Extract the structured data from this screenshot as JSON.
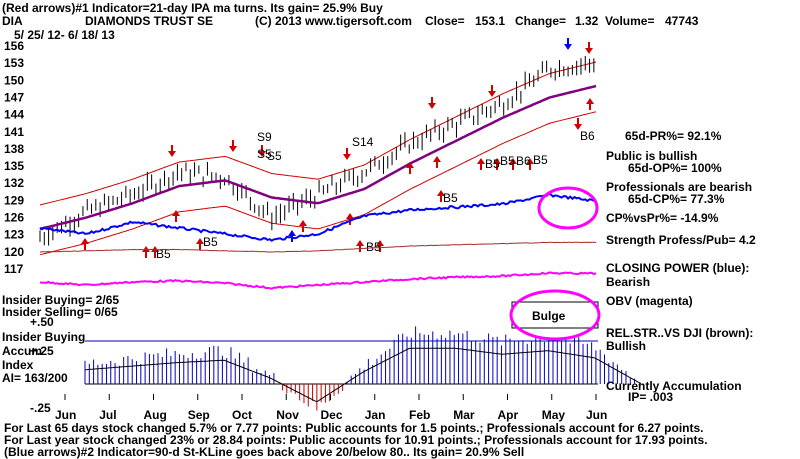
{
  "header": {
    "line1": "(Red arrows)#1 Indicator=21-day IPA ma turns. Its gain= 25.9% Buy",
    "symbol": "DIA",
    "name": "DIAMONDS TRUST SE",
    "copyright": "(C) 2013 www.tigersoft.com",
    "close_label": "Close=",
    "close": "153.1",
    "change_label": "Change=",
    "change": "1.32",
    "volume_label": "Volume=",
    "volume": "47743",
    "daterange": "5/ 25/ 12- 6/ 18/ 13"
  },
  "right_panel": {
    "pr": "65d-PR%= 92.1%",
    "public": "Public is bullish",
    "op": "65d-OP%= 100%",
    "prof": "Professionals are bearish",
    "cp": "65d-CP%= 77.3%",
    "cpvspr": "CP%vsPr%= -14.9%",
    "strength": "Strength Profess/Pub= 4.2",
    "closing_power": "CLOSING POWER (blue):",
    "closing_power_state": "Bearish",
    "obv": "OBV (magenta)",
    "relstr": "REL.STR..VS DJI (brown):",
    "relstr_state": "Bullish",
    "current_accum": "Currently Accumulation",
    "ip": "IP= .003"
  },
  "left_labels": {
    "insider_buying": "Insider Buying= 2/65",
    "insider_selling": "Insider Selling= 0/65",
    "insider_buying2": "Insider Buying",
    "accum": "Accum",
    "index": "Index",
    "ai": "AI= 163/200",
    "plus50": "+.50",
    "plus25": "+.25",
    "minus25": "-.25"
  },
  "bulge_label": "Bulge",
  "footer": {
    "line1": "For Last 65 days stock changed  5.7% or  7.77 points:  Public accounts for  1.5 points.;  Professionals account for  6.27 points.",
    "line2": "For Last year stock changed  23% or  28.84 points:  Public accounts for  10.91 points.;  Professionals account for  17.93 points.",
    "line3": "(Blue arrows)#2 Indicator=90-d St-KLine goes back above 20/below 80.. Its gain= 20.9% Sell"
  },
  "signals": {
    "s9": "S9",
    "s5": "S5",
    "s5b": "S5",
    "s14": "S14",
    "b5a": "B5",
    "b5b": "B5",
    "b5c": "B5",
    "b5d": "B5",
    "b5e": "B5",
    "b5f": "B5",
    "b5g": "B5",
    "b6a": "B6",
    "b6b": "B6"
  },
  "colors": {
    "price_bar": "#000000",
    "band": "#d00000",
    "ma": "#800080",
    "closing_power": "#0000ff",
    "obv": "#ff00ff",
    "relstr": "#a52a2a",
    "accum_pos": "#0000c0",
    "accum_neg": "#cc0000",
    "highlight": "#ff00ff"
  },
  "chart_data": {
    "type": "line",
    "title": "DIAMONDS TRUST SE",
    "xlabel": "",
    "ylabel": "",
    "x_ticks": [
      "Jun",
      "Jul",
      "Aug",
      "Sep",
      "Oct",
      "Nov",
      "Dec",
      "Jan",
      "Feb",
      "Mar",
      "Apr",
      "May",
      "Jun"
    ],
    "y_ticks": [
      156,
      153,
      150,
      147,
      144,
      141,
      138,
      135,
      132,
      129,
      126,
      123,
      120,
      117
    ],
    "ylim": [
      115,
      157
    ],
    "price_series": {
      "name": "DIA close",
      "months": [
        "Jun",
        "Jul",
        "Aug",
        "Sep",
        "Oct",
        "Nov",
        "Dec",
        "Jan",
        "Feb",
        "Mar",
        "Apr",
        "May",
        "Jun"
      ],
      "values": [
        122.5,
        127,
        130,
        134,
        133,
        126,
        130,
        134,
        139,
        142.5,
        146,
        152,
        153.1
      ]
    },
    "moving_average": {
      "name": "21-day MA",
      "values": [
        124,
        126,
        128.5,
        131.5,
        132.5,
        129.5,
        128.5,
        131,
        135.5,
        139.5,
        143.5,
        147,
        149
      ]
    },
    "accum_index": {
      "name": "Accumulation Index",
      "ylim": [
        -0.25,
        0.5
      ],
      "values": [
        0.12,
        0.15,
        0.18,
        0.2,
        0.05,
        -0.15,
        0.1,
        0.3,
        0.3,
        0.25,
        0.28,
        0.22,
        0.003
      ]
    },
    "series": [
      {
        "name": "Closing Power (blue)",
        "values": [
          5,
          4,
          6,
          5,
          4,
          3,
          4,
          7,
          8,
          8.5,
          9,
          10.5,
          9.5
        ]
      },
      {
        "name": "OBV (magenta)",
        "values": [
          3,
          2.5,
          3,
          3.2,
          2.8,
          2,
          2.5,
          3,
          3.5,
          3.8,
          4,
          4.5,
          4.4
        ]
      },
      {
        "name": "Rel.Str vs DJI (brown)",
        "values": [
          4,
          4.1,
          4.2,
          4.2,
          4.1,
          4,
          4.1,
          4.3,
          4.5,
          4.6,
          4.7,
          4.8,
          4.8
        ]
      }
    ]
  }
}
